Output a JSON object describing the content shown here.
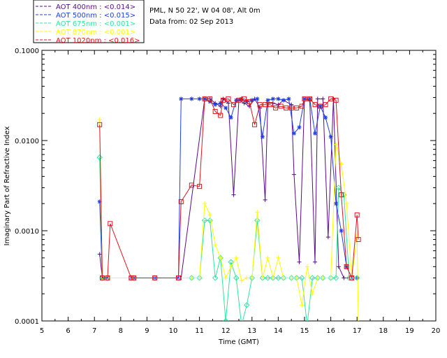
{
  "chart_data": {
    "type": "line",
    "title": "PML, N 50 22', W 04 08', Alt 0m",
    "subtitle": "Data from: 02 Sep 2013",
    "xlabel": "Time (GMT)",
    "ylabel": "Imaginary Part of Refractive Index",
    "xlim": [
      5,
      20
    ],
    "ylim": [
      0.0001,
      0.1
    ],
    "yscale": "log",
    "x_ticks": [
      "5",
      "6",
      "7",
      "8",
      "9",
      "10",
      "11",
      "12",
      "13",
      "14",
      "15",
      "16",
      "17",
      "18",
      "19",
      "20"
    ],
    "y_ticks": [
      {
        "value": 0.0001,
        "label": "0.0001"
      },
      {
        "value": 0.001,
        "label": "0.0010"
      },
      {
        "value": 0.01,
        "label": "0.0100"
      },
      {
        "value": 0.1,
        "label": "0.1000"
      }
    ],
    "legend_position": "top-left",
    "series": [
      {
        "name": "AOT  400nm : <0.014>",
        "color": "#5a0a8c",
        "marker": "plus",
        "points": [
          [
            7.2,
            0.00055
          ],
          [
            7.3,
            0.0003
          ],
          [
            7.5,
            0.0003
          ],
          [
            8.4,
            0.0003
          ],
          [
            8.5,
            0.0003
          ],
          [
            9.3,
            0.0003
          ],
          [
            10.2,
            0.0003
          ],
          [
            10.3,
            0.0003
          ],
          [
            11.2,
            0.029
          ],
          [
            11.4,
            0.029
          ],
          [
            11.6,
            0.026
          ],
          [
            11.8,
            0.024
          ],
          [
            11.9,
            0.029
          ],
          [
            12.1,
            0.026
          ],
          [
            12.3,
            0.0025
          ],
          [
            12.5,
            0.028
          ],
          [
            12.7,
            0.026
          ],
          [
            12.9,
            0.024
          ],
          [
            13.1,
            0.029
          ],
          [
            13.3,
            0.023
          ],
          [
            13.5,
            0.0022
          ],
          [
            13.6,
            0.026
          ],
          [
            13.8,
            0.026
          ],
          [
            14.0,
            0.025
          ],
          [
            14.2,
            0.028
          ],
          [
            14.5,
            0.025
          ],
          [
            14.6,
            0.0042
          ],
          [
            14.8,
            0.00045
          ],
          [
            15.0,
            0.029
          ],
          [
            15.2,
            0.028
          ],
          [
            15.4,
            0.00045
          ],
          [
            15.5,
            0.029
          ],
          [
            15.7,
            0.029
          ],
          [
            15.9,
            0.00085
          ],
          [
            16.1,
            0.029
          ],
          [
            16.3,
            0.0004
          ],
          [
            16.5,
            0.0003
          ],
          [
            16.8,
            0.0003
          ]
        ]
      },
      {
        "name": "AOT  500nm : <0.015>",
        "color": "#1c3ee6",
        "marker": "star",
        "points": [
          [
            7.2,
            0.0021
          ],
          [
            7.3,
            0.0003
          ],
          [
            7.5,
            0.0003
          ],
          [
            8.4,
            0.0003
          ],
          [
            8.5,
            0.0003
          ],
          [
            9.3,
            0.0003
          ],
          [
            10.2,
            0.0003
          ],
          [
            10.3,
            0.029
          ],
          [
            10.7,
            0.029
          ],
          [
            11.0,
            0.029
          ],
          [
            11.2,
            0.029
          ],
          [
            11.4,
            0.027
          ],
          [
            11.6,
            0.025
          ],
          [
            11.8,
            0.026
          ],
          [
            12.0,
            0.023
          ],
          [
            12.2,
            0.018
          ],
          [
            12.4,
            0.028
          ],
          [
            12.6,
            0.029
          ],
          [
            12.8,
            0.027
          ],
          [
            13.0,
            0.028
          ],
          [
            13.2,
            0.029
          ],
          [
            13.4,
            0.011
          ],
          [
            13.6,
            0.028
          ],
          [
            13.8,
            0.029
          ],
          [
            14.0,
            0.029
          ],
          [
            14.2,
            0.028
          ],
          [
            14.4,
            0.029
          ],
          [
            14.6,
            0.012
          ],
          [
            14.8,
            0.014
          ],
          [
            15.0,
            0.029
          ],
          [
            15.2,
            0.029
          ],
          [
            15.4,
            0.012
          ],
          [
            15.6,
            0.024
          ],
          [
            15.8,
            0.018
          ],
          [
            16.0,
            0.011
          ],
          [
            16.2,
            0.002
          ],
          [
            16.4,
            0.001
          ],
          [
            16.6,
            0.0004
          ],
          [
            16.8,
            0.0003
          ],
          [
            17.0,
            0.0003
          ]
        ]
      },
      {
        "name": "AOT  675nm : <0.001>",
        "color": "#2ee6a0",
        "marker": "diamond",
        "points": [
          [
            7.2,
            0.0065
          ],
          [
            7.3,
            0.0003
          ],
          [
            7.5,
            0.0003
          ],
          [
            8.4,
            0.0003
          ],
          [
            8.5,
            0.0003
          ],
          [
            9.3,
            0.0003
          ],
          [
            10.2,
            0.0003
          ],
          [
            10.7,
            0.0003
          ],
          [
            11.0,
            0.0003
          ],
          [
            11.2,
            0.0013
          ],
          [
            11.4,
            0.0013
          ],
          [
            11.6,
            0.0003
          ],
          [
            11.8,
            0.0005
          ],
          [
            12.0,
            0.0001
          ],
          [
            12.2,
            0.00045
          ],
          [
            12.4,
            0.0003
          ],
          [
            12.6,
            9e-05
          ],
          [
            12.8,
            0.00015
          ],
          [
            13.0,
            0.0003
          ],
          [
            13.2,
            0.0013
          ],
          [
            13.4,
            0.0003
          ],
          [
            13.6,
            0.0003
          ],
          [
            13.8,
            0.0003
          ],
          [
            14.0,
            0.0003
          ],
          [
            14.2,
            0.0003
          ],
          [
            14.5,
            0.0003
          ],
          [
            14.7,
            0.0003
          ],
          [
            14.9,
            0.0003
          ],
          [
            15.1,
            9e-05
          ],
          [
            15.3,
            0.0003
          ],
          [
            15.5,
            0.0003
          ],
          [
            15.7,
            0.0003
          ],
          [
            16.0,
            0.0003
          ],
          [
            16.2,
            0.0003
          ],
          [
            16.3,
            0.003
          ],
          [
            16.5,
            0.0025
          ],
          [
            16.7,
            0.0003
          ],
          [
            17.0,
            0.0003
          ]
        ]
      },
      {
        "name": "AOT  870nm : <0.001>",
        "color": "#ffff00",
        "marker": "plus",
        "points": [
          [
            7.2,
            0.017
          ],
          [
            7.3,
            0.0003
          ],
          [
            7.5,
            0.0003
          ],
          [
            8.4,
            0.0003
          ],
          [
            8.5,
            0.0003
          ],
          [
            9.3,
            0.0003
          ],
          [
            10.2,
            0.0003
          ],
          [
            10.7,
            0.0003
          ],
          [
            11.0,
            0.0003
          ],
          [
            11.2,
            0.002
          ],
          [
            11.4,
            0.0015
          ],
          [
            11.6,
            0.0007
          ],
          [
            11.8,
            0.0005
          ],
          [
            12.0,
            0.0003
          ],
          [
            12.2,
            0.0004
          ],
          [
            12.4,
            0.0005
          ],
          [
            12.6,
            0.00028
          ],
          [
            12.8,
            0.0003
          ],
          [
            13.0,
            0.0003
          ],
          [
            13.2,
            0.0016
          ],
          [
            13.4,
            0.0003
          ],
          [
            13.6,
            0.0005
          ],
          [
            13.8,
            0.0003
          ],
          [
            14.0,
            0.0005
          ],
          [
            14.2,
            0.0003
          ],
          [
            14.5,
            0.0003
          ],
          [
            14.7,
            0.0003
          ],
          [
            14.9,
            0.00015
          ],
          [
            15.1,
            0.0004
          ],
          [
            15.3,
            0.0002
          ],
          [
            15.5,
            0.0003
          ],
          [
            15.7,
            0.0003
          ],
          [
            16.0,
            0.0003
          ],
          [
            16.2,
            0.009
          ],
          [
            16.4,
            0.0055
          ],
          [
            16.6,
            0.002
          ],
          [
            16.8,
            0.0003
          ],
          [
            17.0,
            0.0009
          ],
          [
            17.05,
            9e-05
          ]
        ]
      },
      {
        "name": "AOT 1020nm : <0.016>",
        "color": "#e0141e",
        "marker": "square",
        "points": [
          [
            7.2,
            0.015
          ],
          [
            7.3,
            0.0003
          ],
          [
            7.5,
            0.0003
          ],
          [
            7.6,
            0.0012
          ],
          [
            8.4,
            0.0003
          ],
          [
            8.5,
            0.0003
          ],
          [
            9.3,
            0.0003
          ],
          [
            10.2,
            0.0003
          ],
          [
            10.3,
            0.0021
          ],
          [
            10.7,
            0.0032
          ],
          [
            11.0,
            0.0031
          ],
          [
            11.2,
            0.029
          ],
          [
            11.4,
            0.029
          ],
          [
            11.6,
            0.021
          ],
          [
            11.8,
            0.019
          ],
          [
            11.9,
            0.028
          ],
          [
            12.1,
            0.029
          ],
          [
            12.3,
            0.025
          ],
          [
            12.5,
            0.028
          ],
          [
            12.7,
            0.029
          ],
          [
            12.9,
            0.027
          ],
          [
            13.1,
            0.015
          ],
          [
            13.3,
            0.025
          ],
          [
            13.5,
            0.025
          ],
          [
            13.7,
            0.025
          ],
          [
            13.9,
            0.023
          ],
          [
            14.1,
            0.024
          ],
          [
            14.3,
            0.023
          ],
          [
            14.5,
            0.023
          ],
          [
            14.7,
            0.023
          ],
          [
            14.9,
            0.024
          ],
          [
            15.0,
            0.029
          ],
          [
            15.2,
            0.029
          ],
          [
            15.4,
            0.025
          ],
          [
            15.6,
            0.024
          ],
          [
            15.8,
            0.025
          ],
          [
            16.0,
            0.029
          ],
          [
            16.2,
            0.028
          ],
          [
            16.4,
            0.0025
          ],
          [
            16.6,
            0.0004
          ],
          [
            16.8,
            0.0003
          ],
          [
            17.0,
            0.0015
          ],
          [
            17.05,
            0.0008
          ]
        ]
      }
    ]
  }
}
